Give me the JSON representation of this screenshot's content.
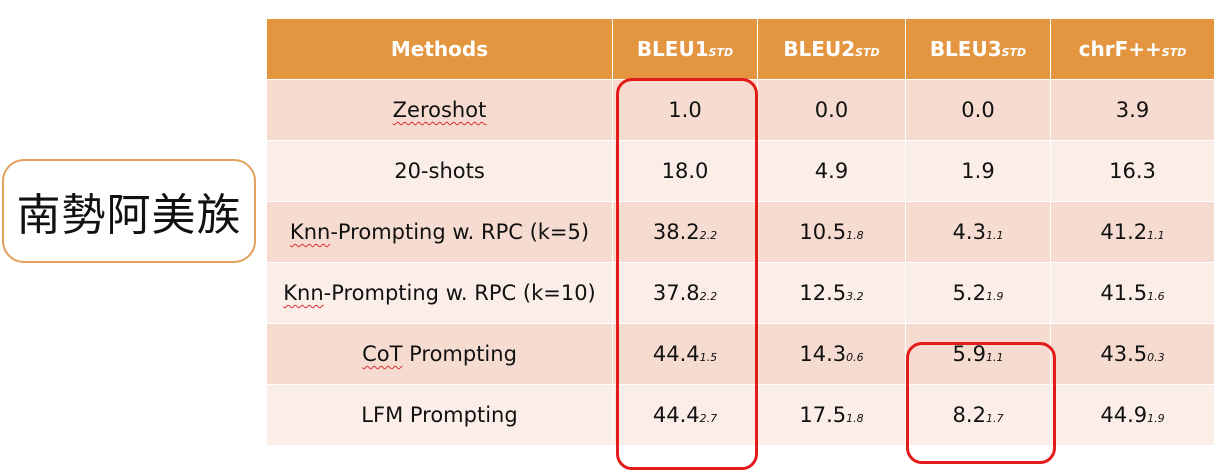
{
  "language_label": "南勢阿美族",
  "header": {
    "methods": "Methods",
    "columns": [
      {
        "main": "BLEU1",
        "sub": "STD"
      },
      {
        "main": "BLEU2",
        "sub": "STD"
      },
      {
        "main": "BLEU3",
        "sub": "STD"
      },
      {
        "main": "chrF++",
        "sub": "STD"
      }
    ]
  },
  "rows": [
    {
      "method": "Zeroshot",
      "squiggle": "Zeroshot",
      "cells": [
        {
          "v": "1.0",
          "s": ""
        },
        {
          "v": "0.0",
          "s": ""
        },
        {
          "v": "0.0",
          "s": ""
        },
        {
          "v": "3.9",
          "s": ""
        }
      ]
    },
    {
      "method": "20-shots",
      "squiggle": "",
      "cells": [
        {
          "v": "18.0",
          "s": ""
        },
        {
          "v": "4.9",
          "s": ""
        },
        {
          "v": "1.9",
          "s": ""
        },
        {
          "v": "16.3",
          "s": ""
        }
      ]
    },
    {
      "method": "Knn-Prompting w. RPC (k=5)",
      "squiggle": "Knn",
      "cells": [
        {
          "v": "38.2",
          "s": "2.2"
        },
        {
          "v": "10.5",
          "s": "1.8"
        },
        {
          "v": "4.3",
          "s": "1.1"
        },
        {
          "v": "41.2",
          "s": "1.1"
        }
      ]
    },
    {
      "method": "Knn-Prompting w. RPC (k=10)",
      "squiggle": "Knn",
      "cells": [
        {
          "v": "37.8",
          "s": "2.2"
        },
        {
          "v": "12.5",
          "s": "3.2"
        },
        {
          "v": "5.2",
          "s": "1.9"
        },
        {
          "v": "41.5",
          "s": "1.6"
        }
      ]
    },
    {
      "method": "CoT Prompting",
      "squiggle": "CoT",
      "cells": [
        {
          "v": "44.4",
          "s": "1.5"
        },
        {
          "v": "14.3",
          "s": "0.6"
        },
        {
          "v": "5.9",
          "s": "1.1"
        },
        {
          "v": "43.5",
          "s": "0.3"
        }
      ]
    },
    {
      "method": "LFM Prompting",
      "squiggle": "",
      "cells": [
        {
          "v": "44.4",
          "s": "2.7"
        },
        {
          "v": "17.5",
          "s": "1.8"
        },
        {
          "v": "8.2",
          "s": "1.7"
        },
        {
          "v": "44.9",
          "s": "1.9"
        }
      ]
    }
  ],
  "colors": {
    "header_bg": "#e39540",
    "row_odd": "#f6dcd0",
    "row_even": "#fbeee8",
    "highlight": "#e21b1b",
    "label_border": "#e2a15c"
  }
}
